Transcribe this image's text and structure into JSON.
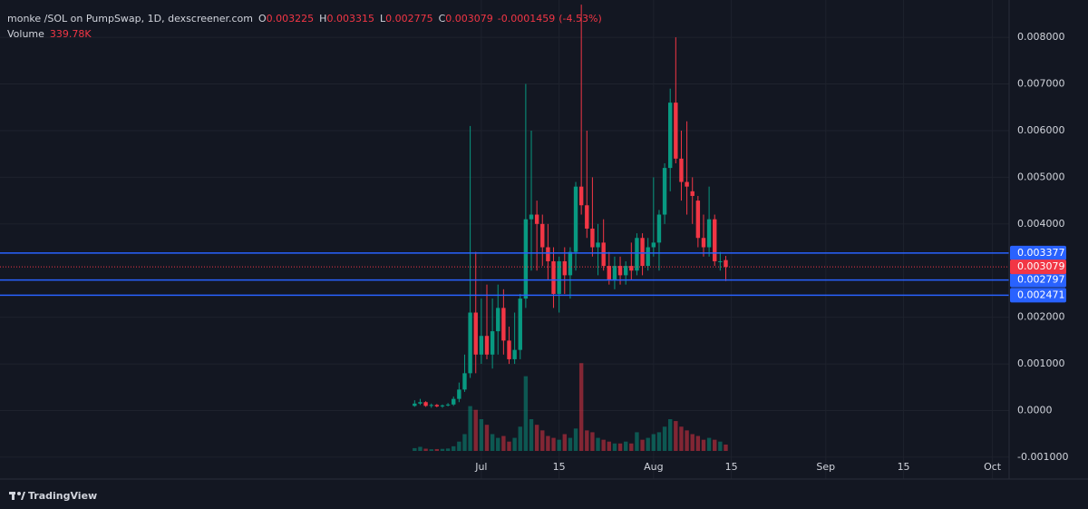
{
  "chart_data": {
    "type": "candlestick",
    "title": "monke /SOL on PumpSwap, 1D, dexscreener.com",
    "ohlc": [
      {
        "label": "O",
        "value": 0.003225
      },
      {
        "label": "H",
        "value": 0.003315
      },
      {
        "label": "L",
        "value": 0.002775
      },
      {
        "label": "C",
        "value": 0.003079
      }
    ],
    "change": -0.0001459,
    "change_pct": {
      "value": -4.53,
      "label": "(-4.53%)"
    },
    "x": [
      "06-19",
      "06-20",
      "06-21",
      "06-22",
      "06-23",
      "06-24",
      "06-25",
      "06-26",
      "06-27",
      "06-28",
      "06-29",
      "06-30",
      "07-01",
      "07-02",
      "07-03",
      "07-04",
      "07-05",
      "07-06",
      "07-07",
      "07-08",
      "07-09",
      "07-10",
      "07-11",
      "07-12",
      "07-13",
      "07-14",
      "07-15",
      "07-16",
      "07-17",
      "07-18",
      "07-19",
      "07-20",
      "07-21",
      "07-22",
      "07-23",
      "07-24",
      "07-25",
      "07-26",
      "07-27",
      "07-28",
      "07-29",
      "07-30",
      "07-31",
      "08-01",
      "08-02",
      "08-03",
      "08-04",
      "08-05",
      "08-06",
      "08-07",
      "08-08",
      "08-09",
      "08-10",
      "08-11",
      "08-12",
      "08-13",
      "08-14"
    ],
    "open": [
      0.0001,
      0.00015,
      0.00018,
      0.0001,
      0.00012,
      9e-05,
      0.00011,
      0.00013,
      0.00025,
      0.00045,
      0.0008,
      0.0021,
      0.0012,
      0.0016,
      0.0012,
      0.0017,
      0.0022,
      0.0015,
      0.0011,
      0.0013,
      0.0024,
      0.0041,
      0.0042,
      0.004,
      0.0035,
      0.0032,
      0.0025,
      0.0032,
      0.0029,
      0.0034,
      0.0048,
      0.0044,
      0.0039,
      0.0035,
      0.0036,
      0.0031,
      0.0028,
      0.0031,
      0.0029,
      0.0031,
      0.003,
      0.0037,
      0.0031,
      0.0035,
      0.0036,
      0.0042,
      0.0052,
      0.0066,
      0.0054,
      0.0049,
      0.0047,
      0.0045,
      0.0037,
      0.0035,
      0.0041,
      0.0032,
      0.003225
    ],
    "high": [
      0.00022,
      0.00025,
      0.0002,
      0.00015,
      0.00014,
      0.00013,
      0.00016,
      0.0003,
      0.0006,
      0.0012,
      0.0061,
      0.0034,
      0.0024,
      0.0027,
      0.0024,
      0.0027,
      0.0026,
      0.0018,
      0.0021,
      0.0025,
      0.007,
      0.006,
      0.0045,
      0.0042,
      0.004,
      0.0035,
      0.0033,
      0.0035,
      0.0035,
      0.0049,
      0.0087,
      0.006,
      0.005,
      0.004,
      0.0041,
      0.0034,
      0.0033,
      0.0033,
      0.0032,
      0.0036,
      0.0038,
      0.0038,
      0.0037,
      0.005,
      0.0043,
      0.0053,
      0.0069,
      0.008,
      0.006,
      0.0062,
      0.005,
      0.0046,
      0.0042,
      0.0048,
      0.0042,
      0.0034,
      0.003315
    ],
    "low": [
      8e-05,
      0.00012,
      8e-05,
      6e-05,
      7e-05,
      6e-05,
      9e-05,
      0.0001,
      0.00018,
      0.0004,
      0.0007,
      0.0008,
      0.001,
      0.0011,
      0.0009,
      0.0012,
      0.0012,
      0.001,
      0.001,
      0.0011,
      0.0022,
      0.003,
      0.003,
      0.0031,
      0.0028,
      0.0022,
      0.0021,
      0.0025,
      0.0024,
      0.003,
      0.0042,
      0.0037,
      0.0033,
      0.0029,
      0.003,
      0.0027,
      0.0026,
      0.0027,
      0.0027,
      0.0028,
      0.0029,
      0.0029,
      0.003,
      0.0033,
      0.003,
      0.004,
      0.0047,
      0.0053,
      0.0045,
      0.0042,
      0.004,
      0.0035,
      0.0033,
      0.0033,
      0.0031,
      0.003,
      0.002775
    ],
    "close": [
      0.00015,
      0.00018,
      0.0001,
      0.00012,
      9e-05,
      0.00011,
      0.00013,
      0.00025,
      0.00045,
      0.0008,
      0.0021,
      0.0012,
      0.0016,
      0.0012,
      0.0017,
      0.0022,
      0.0015,
      0.0011,
      0.0013,
      0.0024,
      0.0041,
      0.0042,
      0.004,
      0.0035,
      0.0032,
      0.0025,
      0.0032,
      0.0029,
      0.0034,
      0.0048,
      0.0044,
      0.0039,
      0.0035,
      0.0036,
      0.0031,
      0.0028,
      0.0031,
      0.0029,
      0.0031,
      0.003,
      0.0037,
      0.0031,
      0.0035,
      0.0036,
      0.0042,
      0.0052,
      0.0066,
      0.0054,
      0.0049,
      0.0048,
      0.0046,
      0.0037,
      0.0035,
      0.0041,
      0.0032,
      0.0032,
      0.003079
    ],
    "volume": {
      "name": "Volume",
      "values": [
        150000,
        220000,
        120000,
        90000,
        100000,
        110000,
        130000,
        250000,
        500000,
        900000,
        2400000,
        2200000,
        1700000,
        1400000,
        900000,
        700000,
        800000,
        500000,
        700000,
        1300000,
        4000000,
        1700000,
        1400000,
        1100000,
        800000,
        700000,
        600000,
        900000,
        700000,
        1200000,
        4700000,
        1100000,
        1000000,
        700000,
        600000,
        500000,
        400000,
        400000,
        500000,
        400000,
        1000000,
        600000,
        700000,
        900000,
        1000000,
        1300000,
        1700000,
        1600000,
        1300000,
        1100000,
        900000,
        800000,
        600000,
        700000,
        600000,
        500000,
        339780
      ],
      "value_labels": [
        null,
        null,
        null,
        null,
        null,
        null,
        null,
        null,
        null,
        null,
        null,
        null,
        null,
        null,
        null,
        null,
        null,
        null,
        null,
        null,
        null,
        null,
        null,
        null,
        null,
        null,
        null,
        null,
        null,
        null,
        null,
        null,
        null,
        null,
        null,
        null,
        null,
        null,
        null,
        null,
        null,
        null,
        null,
        null,
        null,
        null,
        null,
        null,
        null,
        null,
        null,
        null,
        null,
        null,
        null,
        null,
        "339.78K"
      ]
    },
    "volume_ylim": [
      0,
      24000000
    ],
    "up_color": "#089981",
    "down_color": "#f23645",
    "xlim": [
      "04-07",
      "10-04"
    ],
    "xticks": [
      {
        "value": "07-01",
        "label": "Jul"
      },
      {
        "value": "07-15",
        "label": "15"
      },
      {
        "value": "08-01",
        "label": "Aug"
      },
      {
        "value": "08-15",
        "label": "15"
      },
      {
        "value": "09-01",
        "label": "Sep"
      },
      {
        "value": "09-15",
        "label": "15"
      },
      {
        "value": "10-01",
        "label": "Oct"
      }
    ],
    "ylim": [
      -0.00106,
      0.0088
    ],
    "yticks": [
      {
        "value": 0.008,
        "label": "0.008000"
      },
      {
        "value": 0.007,
        "label": "0.007000"
      },
      {
        "value": 0.006,
        "label": "0.006000"
      },
      {
        "value": 0.005,
        "label": "0.005000"
      },
      {
        "value": 0.004,
        "label": "0.004000"
      },
      {
        "value": 0.002,
        "label": "0.002000"
      },
      {
        "value": 0.001,
        "label": "0.001000"
      },
      {
        "value": 0,
        "label": "0.0000"
      },
      {
        "value": -0.001,
        "label": "-0.001000"
      }
    ],
    "grid": true,
    "price_lines": {
      "color": "#2962ff",
      "values": [
        0.003377,
        0.002797,
        0.002471
      ]
    },
    "last_price": 0.003079,
    "branding": "TradingView"
  }
}
